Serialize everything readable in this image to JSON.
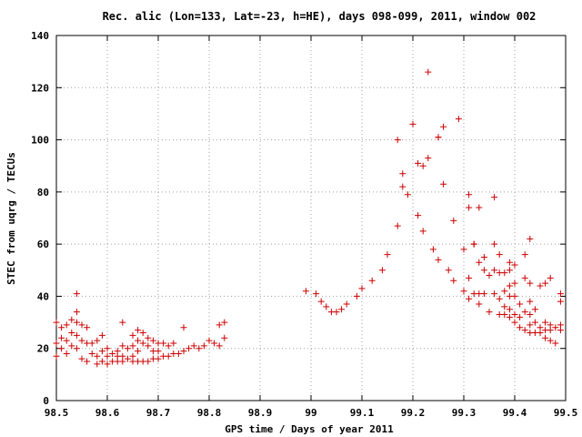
{
  "chart_data": {
    "type": "scatter",
    "title": "Rec. alic (Lon=133, Lat=-23, h=HE), days 098-099, 2011, window 002",
    "xlabel": "GPS time / Days of year 2011",
    "ylabel": "STEC from uqrg / TECUs",
    "xlim": [
      98.5,
      99.5
    ],
    "ylim": [
      0,
      140
    ],
    "x_ticks": [
      "98.5",
      "98.6",
      "98.7",
      "98.8",
      "98.9",
      "99",
      "99.1",
      "99.2",
      "99.3",
      "99.4",
      "99.5"
    ],
    "y_ticks": [
      "0",
      "20",
      "40",
      "60",
      "80",
      "100",
      "120",
      "140"
    ],
    "grid": true,
    "legend": "none",
    "marker": "plus",
    "color": "#cc0000",
    "points": [
      [
        98.5,
        30
      ],
      [
        98.5,
        22
      ],
      [
        98.5,
        17
      ],
      [
        98.51,
        28
      ],
      [
        98.51,
        24
      ],
      [
        98.51,
        20
      ],
      [
        98.52,
        29
      ],
      [
        98.52,
        23
      ],
      [
        98.52,
        18
      ],
      [
        98.53,
        31
      ],
      [
        98.53,
        26
      ],
      [
        98.53,
        21
      ],
      [
        98.54,
        30
      ],
      [
        98.54,
        25
      ],
      [
        98.54,
        20
      ],
      [
        98.54,
        41
      ],
      [
        98.54,
        34
      ],
      [
        98.55,
        29
      ],
      [
        98.55,
        23
      ],
      [
        98.55,
        16
      ],
      [
        98.56,
        28
      ],
      [
        98.56,
        22
      ],
      [
        98.56,
        15
      ],
      [
        98.57,
        22
      ],
      [
        98.57,
        18
      ],
      [
        98.58,
        23
      ],
      [
        98.58,
        17
      ],
      [
        98.58,
        14
      ],
      [
        98.59,
        25
      ],
      [
        98.59,
        19
      ],
      [
        98.59,
        15
      ],
      [
        98.6,
        20
      ],
      [
        98.6,
        17
      ],
      [
        98.6,
        14
      ],
      [
        98.61,
        18
      ],
      [
        98.61,
        15
      ],
      [
        98.62,
        19
      ],
      [
        98.62,
        17
      ],
      [
        98.62,
        15
      ],
      [
        98.63,
        30
      ],
      [
        98.63,
        21
      ],
      [
        98.63,
        17
      ],
      [
        98.63,
        15
      ],
      [
        98.64,
        20
      ],
      [
        98.64,
        16
      ],
      [
        98.65,
        25
      ],
      [
        98.65,
        21
      ],
      [
        98.65,
        17
      ],
      [
        98.65,
        15
      ],
      [
        98.66,
        27
      ],
      [
        98.66,
        23
      ],
      [
        98.66,
        19
      ],
      [
        98.66,
        15
      ],
      [
        98.67,
        26
      ],
      [
        98.67,
        22
      ],
      [
        98.67,
        15
      ],
      [
        98.68,
        24
      ],
      [
        98.68,
        21
      ],
      [
        98.68,
        15
      ],
      [
        98.69,
        23
      ],
      [
        98.69,
        19
      ],
      [
        98.69,
        16
      ],
      [
        98.7,
        22
      ],
      [
        98.7,
        19
      ],
      [
        98.7,
        16
      ],
      [
        98.71,
        22
      ],
      [
        98.71,
        17
      ],
      [
        98.72,
        21
      ],
      [
        98.72,
        17
      ],
      [
        98.73,
        22
      ],
      [
        98.73,
        18
      ],
      [
        98.74,
        18
      ],
      [
        98.75,
        28
      ],
      [
        98.75,
        19
      ],
      [
        98.76,
        20
      ],
      [
        98.77,
        21
      ],
      [
        98.78,
        20
      ],
      [
        98.79,
        21
      ],
      [
        98.8,
        23
      ],
      [
        98.81,
        22
      ],
      [
        98.82,
        29
      ],
      [
        98.82,
        21
      ],
      [
        98.83,
        30
      ],
      [
        98.83,
        24
      ],
      [
        98.99,
        42
      ],
      [
        99.01,
        41
      ],
      [
        99.02,
        38
      ],
      [
        99.03,
        36
      ],
      [
        99.04,
        34
      ],
      [
        99.05,
        34
      ],
      [
        99.06,
        35
      ],
      [
        99.07,
        37
      ],
      [
        99.09,
        40
      ],
      [
        99.1,
        43
      ],
      [
        99.12,
        46
      ],
      [
        99.14,
        50
      ],
      [
        99.15,
        56
      ],
      [
        99.17,
        67
      ],
      [
        99.17,
        100
      ],
      [
        99.18,
        87
      ],
      [
        99.18,
        82
      ],
      [
        99.19,
        79
      ],
      [
        99.2,
        106
      ],
      [
        99.21,
        91
      ],
      [
        99.21,
        71
      ],
      [
        99.22,
        90
      ],
      [
        99.22,
        65
      ],
      [
        99.23,
        93
      ],
      [
        99.23,
        126
      ],
      [
        99.24,
        58
      ],
      [
        99.25,
        101
      ],
      [
        99.25,
        101
      ],
      [
        99.25,
        54
      ],
      [
        99.26,
        105
      ],
      [
        99.26,
        83
      ],
      [
        99.27,
        50
      ],
      [
        99.28,
        69
      ],
      [
        99.28,
        46
      ],
      [
        99.29,
        108
      ],
      [
        99.3,
        58
      ],
      [
        99.3,
        42
      ],
      [
        99.31,
        79
      ],
      [
        99.31,
        74
      ],
      [
        99.31,
        47
      ],
      [
        99.31,
        39
      ],
      [
        99.32,
        60
      ],
      [
        99.32,
        60
      ],
      [
        99.32,
        41
      ],
      [
        99.33,
        74
      ],
      [
        99.33,
        53
      ],
      [
        99.33,
        41
      ],
      [
        99.33,
        37
      ],
      [
        99.34,
        55
      ],
      [
        99.34,
        50
      ],
      [
        99.34,
        41
      ],
      [
        99.35,
        48
      ],
      [
        99.35,
        34
      ],
      [
        99.36,
        78
      ],
      [
        99.36,
        60
      ],
      [
        99.36,
        50
      ],
      [
        99.36,
        41
      ],
      [
        99.37,
        56
      ],
      [
        99.37,
        49
      ],
      [
        99.37,
        39
      ],
      [
        99.37,
        33
      ],
      [
        99.38,
        49
      ],
      [
        99.38,
        42
      ],
      [
        99.38,
        36
      ],
      [
        99.38,
        33
      ],
      [
        99.39,
        53
      ],
      [
        99.39,
        50
      ],
      [
        99.39,
        44
      ],
      [
        99.39,
        40
      ],
      [
        99.39,
        35
      ],
      [
        99.39,
        32
      ],
      [
        99.4,
        52
      ],
      [
        99.4,
        45
      ],
      [
        99.4,
        40
      ],
      [
        99.4,
        33
      ],
      [
        99.4,
        30
      ],
      [
        99.41,
        37
      ],
      [
        99.41,
        32
      ],
      [
        99.41,
        28
      ],
      [
        99.42,
        56
      ],
      [
        99.42,
        47
      ],
      [
        99.42,
        34
      ],
      [
        99.42,
        27
      ],
      [
        99.43,
        62
      ],
      [
        99.43,
        45
      ],
      [
        99.43,
        38
      ],
      [
        99.43,
        33
      ],
      [
        99.43,
        29
      ],
      [
        99.43,
        26
      ],
      [
        99.44,
        35
      ],
      [
        99.44,
        30
      ],
      [
        99.44,
        26
      ],
      [
        99.45,
        44
      ],
      [
        99.45,
        28
      ],
      [
        99.45,
        26
      ],
      [
        99.46,
        45
      ],
      [
        99.46,
        30
      ],
      [
        99.46,
        27
      ],
      [
        99.46,
        24
      ],
      [
        99.47,
        47
      ],
      [
        99.47,
        29
      ],
      [
        99.47,
        27
      ],
      [
        99.47,
        23
      ],
      [
        99.48,
        28
      ],
      [
        99.48,
        22
      ],
      [
        99.49,
        41
      ],
      [
        99.49,
        38
      ],
      [
        99.49,
        29
      ],
      [
        99.49,
        27
      ]
    ]
  }
}
